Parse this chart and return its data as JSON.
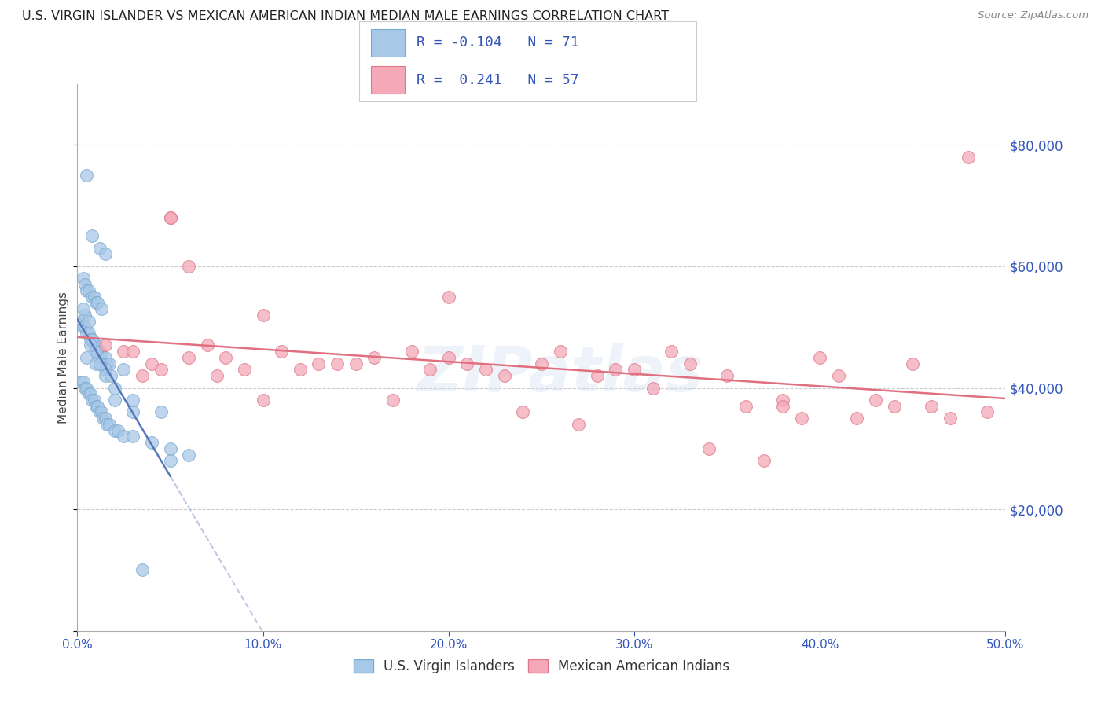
{
  "title": "U.S. VIRGIN ISLANDER VS MEXICAN AMERICAN INDIAN MEDIAN MALE EARNINGS CORRELATION CHART",
  "source_text": "Source: ZipAtlas.com",
  "ylabel": "Median Male Earnings",
  "xlim": [
    0.0,
    50.0
  ],
  "ylim": [
    0,
    90000
  ],
  "yticks": [
    20000,
    40000,
    60000,
    80000
  ],
  "ytick_labels": [
    "$20,000",
    "$40,000",
    "$60,000",
    "$80,000"
  ],
  "xticks": [
    0.0,
    10.0,
    20.0,
    30.0,
    40.0,
    50.0
  ],
  "xtick_labels": [
    "0.0%",
    "10.0%",
    "20.0%",
    "30.0%",
    "40.0%",
    "50.0%"
  ],
  "legend_r_blue": "-0.104",
  "legend_n_blue": "71",
  "legend_r_pink": "0.241",
  "legend_n_pink": "57",
  "legend_label_blue": "U.S. Virgin Islanders",
  "legend_label_pink": "Mexican American Indians",
  "blue_color": "#a8c8e8",
  "pink_color": "#f4a8b8",
  "blue_edge": "#7aaace",
  "pink_edge": "#e07888",
  "blue_line_color": "#5577bb",
  "pink_line_color": "#e07080",
  "blue_dash_color": "#aabbdd",
  "axis_color": "#3355bb",
  "title_color": "#222222",
  "watermark": "ZIPatlas",
  "background_color": "#ffffff",
  "blue_x": [
    0.5,
    0.8,
    1.2,
    1.5,
    0.3,
    0.4,
    0.5,
    0.6,
    0.8,
    0.9,
    1.0,
    1.1,
    1.3,
    0.2,
    0.3,
    0.4,
    0.5,
    0.6,
    0.7,
    0.8,
    0.9,
    1.0,
    1.1,
    1.2,
    1.3,
    1.5,
    1.6,
    1.7,
    2.5,
    0.2,
    0.3,
    0.4,
    0.5,
    0.6,
    0.7,
    0.8,
    0.9,
    1.0,
    1.1,
    1.2,
    1.3,
    1.4,
    1.5,
    1.6,
    1.7,
    2.0,
    2.2,
    2.5,
    3.0,
    4.0,
    5.0,
    6.0,
    0.5,
    1.0,
    1.5,
    2.0,
    3.0,
    5.0,
    0.4,
    0.6,
    0.8,
    1.0,
    1.2,
    1.5,
    2.0,
    3.0,
    4.5,
    0.3,
    0.7,
    1.8,
    3.5
  ],
  "blue_y": [
    75000,
    65000,
    63000,
    62000,
    58000,
    57000,
    56000,
    56000,
    55000,
    55000,
    54000,
    54000,
    53000,
    51000,
    50000,
    50000,
    49000,
    49000,
    48000,
    48000,
    47000,
    47000,
    46000,
    46000,
    45000,
    45000,
    44000,
    44000,
    43000,
    41000,
    41000,
    40000,
    40000,
    39000,
    39000,
    38000,
    38000,
    37000,
    37000,
    36000,
    36000,
    35000,
    35000,
    34000,
    34000,
    33000,
    33000,
    32000,
    32000,
    31000,
    30000,
    29000,
    45000,
    44000,
    43000,
    38000,
    36000,
    28000,
    52000,
    51000,
    48000,
    46000,
    44000,
    42000,
    40000,
    38000,
    36000,
    53000,
    47000,
    42000,
    10000
  ],
  "pink_x": [
    1.5,
    3.5,
    5.0,
    7.0,
    8.0,
    10.0,
    12.0,
    15.0,
    18.0,
    20.0,
    22.0,
    25.0,
    28.0,
    30.0,
    32.0,
    35.0,
    38.0,
    40.0,
    42.0,
    45.0,
    48.0,
    2.5,
    4.0,
    6.0,
    9.0,
    11.0,
    13.0,
    16.0,
    19.0,
    21.0,
    23.0,
    26.0,
    29.0,
    31.0,
    33.0,
    36.0,
    39.0,
    41.0,
    43.0,
    46.0,
    4.5,
    7.5,
    14.0,
    17.0,
    24.0,
    27.0,
    34.0,
    37.0,
    44.0,
    47.0,
    49.0,
    6.0,
    10.0,
    5.0,
    3.0,
    20.0,
    38.0
  ],
  "pink_y": [
    47000,
    42000,
    68000,
    47000,
    45000,
    52000,
    43000,
    44000,
    46000,
    45000,
    43000,
    44000,
    42000,
    43000,
    46000,
    42000,
    38000,
    45000,
    35000,
    44000,
    78000,
    46000,
    44000,
    45000,
    43000,
    46000,
    44000,
    45000,
    43000,
    44000,
    42000,
    46000,
    43000,
    40000,
    44000,
    37000,
    35000,
    42000,
    38000,
    37000,
    43000,
    42000,
    44000,
    38000,
    36000,
    34000,
    30000,
    28000,
    37000,
    35000,
    36000,
    60000,
    38000,
    68000,
    46000,
    55000,
    37000
  ]
}
